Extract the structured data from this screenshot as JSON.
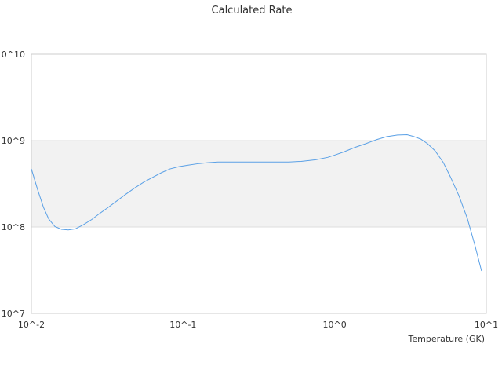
{
  "chart_data": {
    "type": "line",
    "title": "Calculated Rate",
    "xlabel": "Temperature (GK)",
    "ylabel": "",
    "xscale": "log",
    "yscale": "log",
    "xlim": [
      0.01,
      10
    ],
    "ylim": [
      10000000,
      10000000000
    ],
    "x_tick_labels": [
      "10^-2",
      "10^-1",
      "10^0",
      "10^1"
    ],
    "y_tick_labels": [
      "10^7",
      "10^8",
      "10^9",
      "10^10"
    ],
    "grid": "horizontal",
    "shaded_band": [
      100000000,
      1000000000
    ],
    "legend": "none",
    "colors": {
      "line": "#5aa0e6",
      "band": "#f2f2f2",
      "gridline": "#dddddd",
      "frame": "#cccccc"
    },
    "series": [
      {
        "x": [
          0.01,
          0.011,
          0.012,
          0.013,
          0.0143,
          0.0158,
          0.0175,
          0.0195,
          0.022,
          0.025,
          0.028,
          0.032,
          0.037,
          0.042,
          0.048,
          0.055,
          0.063,
          0.072,
          0.082,
          0.094,
          0.108,
          0.125,
          0.145,
          0.17,
          0.2,
          0.25,
          0.3,
          0.4,
          0.5,
          0.6,
          0.75,
          0.9,
          1.0,
          1.15,
          1.35,
          1.6,
          1.9,
          2.2,
          2.6,
          3.0,
          3.3,
          3.7,
          4.1,
          4.6,
          5.2,
          5.8,
          6.6,
          7.5,
          8.4,
          9.3
        ],
        "y": [
          470000000,
          270000000,
          170000000,
          124000000,
          101000000,
          94000000,
          92500000,
          95000000,
          106000000,
          122000000,
          142000000,
          168000000,
          203000000,
          240000000,
          283000000,
          330000000,
          375000000,
          425000000,
          470000000,
          500000000,
          520000000,
          540000000,
          555000000,
          565000000,
          565000000,
          565000000,
          565000000,
          565000000,
          565000000,
          575000000,
          600000000,
          640000000,
          680000000,
          740000000,
          830000000,
          920000000,
          1030000000,
          1110000000,
          1160000000,
          1170000000,
          1120000000,
          1040000000,
          920000000,
          760000000,
          560000000,
          380000000,
          230000000,
          125000000,
          62000000,
          31000000
        ]
      }
    ]
  }
}
